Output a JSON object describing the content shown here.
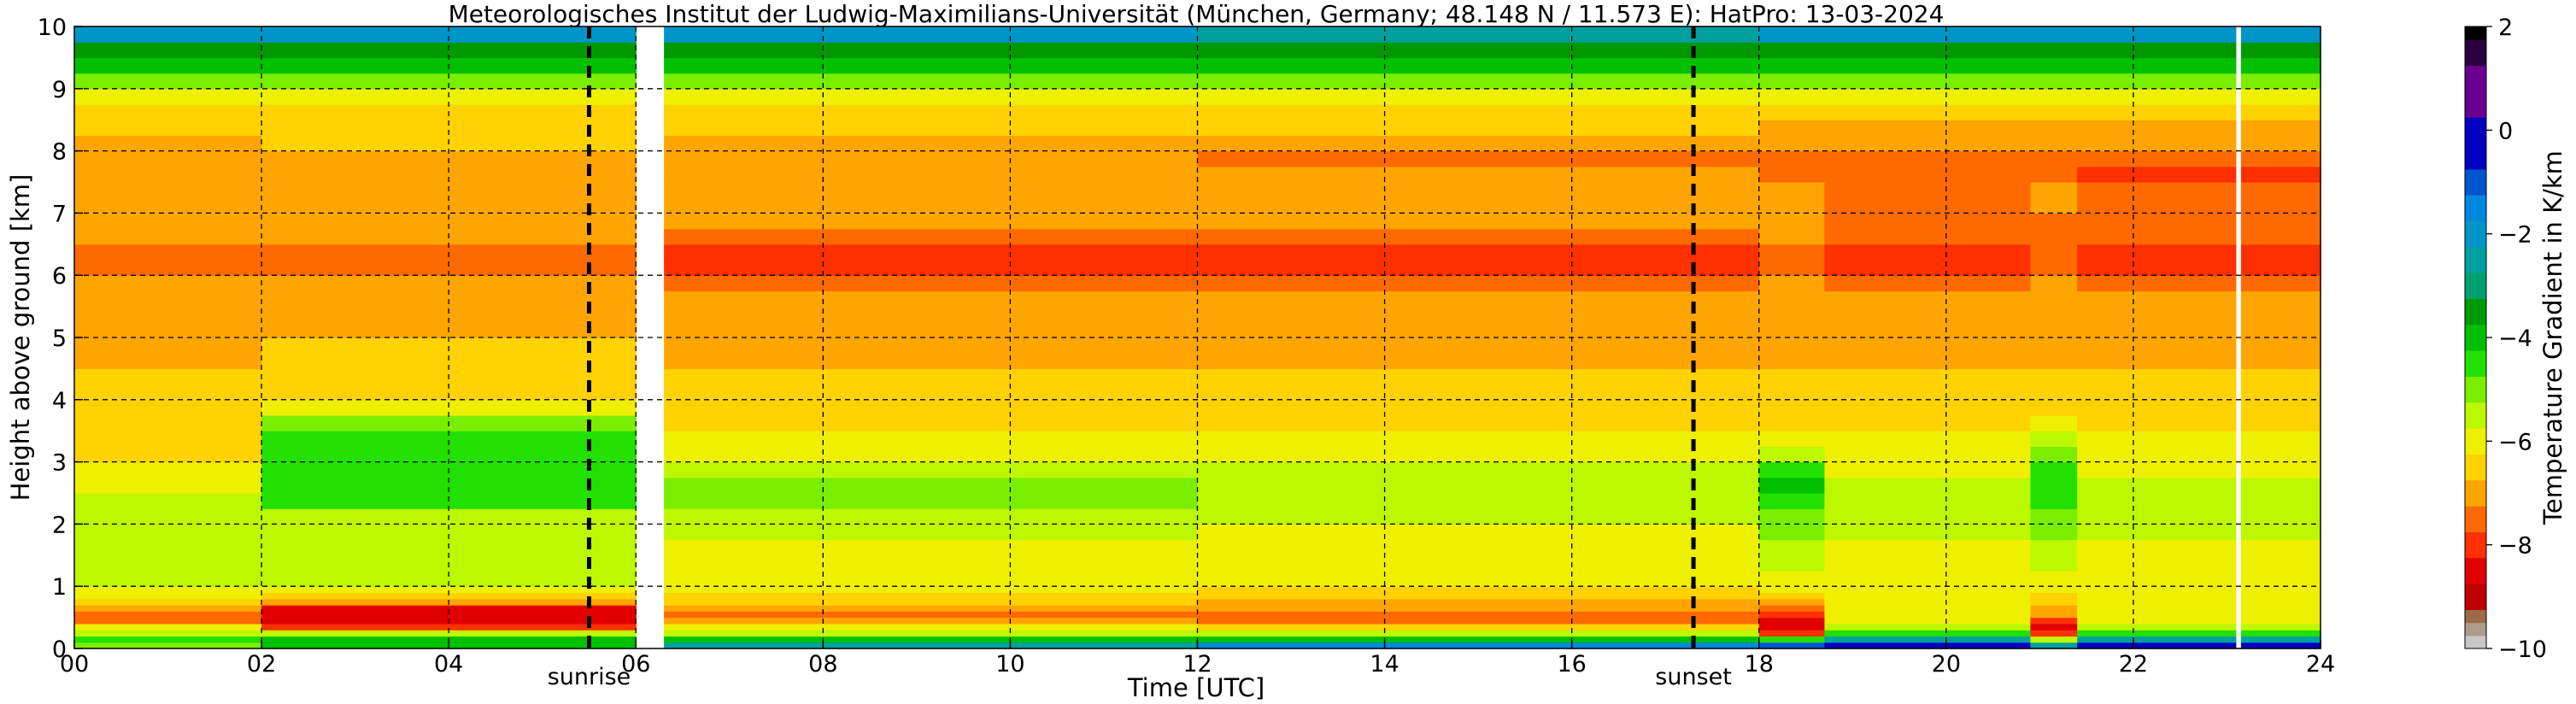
{
  "chart_data": {
    "type": "heatmap",
    "title": "Meteorologisches Institut der Ludwig-Maximilians-Universität (München, Germany; 48.148 N / 11.573 E):    HatPro: 13-03-2024",
    "xlabel": "Time [UTC]",
    "ylabel": "Height above ground [km]",
    "colorbar_label": "Temperature Gradient in K/km",
    "xlim": [
      0,
      24
    ],
    "ylim": [
      0,
      10
    ],
    "x_ticks": [
      "00",
      "02",
      "04",
      "06",
      "08",
      "10",
      "12",
      "14",
      "16",
      "18",
      "20",
      "22",
      "24"
    ],
    "y_ticks": [
      "0",
      "1",
      "2",
      "3",
      "4",
      "5",
      "6",
      "7",
      "8",
      "9",
      "10"
    ],
    "colorbar_ticks": [
      "2",
      "0",
      "−2",
      "−4",
      "−6",
      "−8",
      "−10"
    ],
    "colorbar_range": [
      -10,
      2
    ],
    "grid": true,
    "grid_style": "dashed",
    "annotations": [
      {
        "label": "sunrise",
        "x": 5.5
      },
      {
        "label": "sunset",
        "x": 17.3
      }
    ],
    "missing_data": [
      [
        6.05,
        6.25
      ],
      [
        23.1,
        23.15
      ]
    ],
    "colormap": [
      {
        "from": -10.0,
        "to": -9.75,
        "color": "#c7c7c7"
      },
      {
        "from": -9.75,
        "to": -9.5,
        "color": "#b09a8a"
      },
      {
        "from": -9.5,
        "to": -9.25,
        "color": "#9a6a4a"
      },
      {
        "from": -9.25,
        "to": -8.75,
        "color": "#c00000"
      },
      {
        "from": -8.75,
        "to": -8.25,
        "color": "#e00000"
      },
      {
        "from": -8.25,
        "to": -7.75,
        "color": "#ff3000"
      },
      {
        "from": -7.75,
        "to": -7.25,
        "color": "#ff6a00"
      },
      {
        "from": -7.25,
        "to": -6.75,
        "color": "#ffa500"
      },
      {
        "from": -6.75,
        "to": -6.25,
        "color": "#ffd200"
      },
      {
        "from": -6.25,
        "to": -5.75,
        "color": "#eff000"
      },
      {
        "from": -5.75,
        "to": -5.25,
        "color": "#bdf700"
      },
      {
        "from": -5.25,
        "to": -4.75,
        "color": "#7aee00"
      },
      {
        "from": -4.75,
        "to": -4.25,
        "color": "#22e000"
      },
      {
        "from": -4.25,
        "to": -3.75,
        "color": "#00c000"
      },
      {
        "from": -3.75,
        "to": -3.25,
        "color": "#009a00"
      },
      {
        "from": -3.25,
        "to": -2.75,
        "color": "#00a070"
      },
      {
        "from": -2.75,
        "to": -2.25,
        "color": "#00a0a0"
      },
      {
        "from": -2.25,
        "to": -1.75,
        "color": "#0095c8"
      },
      {
        "from": -1.75,
        "to": -1.25,
        "color": "#0088e0"
      },
      {
        "from": -1.25,
        "to": -0.75,
        "color": "#0055d0"
      },
      {
        "from": -0.75,
        "to": 0.25,
        "color": "#0000c0"
      },
      {
        "from": 0.25,
        "to": 1.25,
        "color": "#6a0090"
      },
      {
        "from": 1.25,
        "to": 1.75,
        "color": "#2a0040"
      },
      {
        "from": 1.75,
        "to": 2.0,
        "color": "#000000"
      }
    ],
    "profile_height_km": [
      0.0,
      0.1,
      0.2,
      0.3,
      0.4,
      0.5,
      0.6,
      0.7,
      0.8,
      0.9,
      1.0,
      1.25,
      1.5,
      1.75,
      2.0,
      2.25,
      2.5,
      2.75,
      3.0,
      3.25,
      3.5,
      3.75,
      4.0,
      4.5,
      5.0,
      5.5,
      5.75,
      6.0,
      6.25,
      6.5,
      6.75,
      7.0,
      7.5,
      7.75,
      8.0,
      8.25,
      8.5,
      8.75,
      9.0,
      9.25,
      9.5,
      9.75,
      10.0
    ],
    "segments": [
      {
        "t0": 0.0,
        "t1": 2.0,
        "profile": [
          -5.0,
          -4.5,
          -5.5,
          -6.2,
          -7.5,
          -7.5,
          -6.8,
          -6.5,
          -6.2,
          -6.0,
          -5.7,
          -5.6,
          -5.4,
          -5.4,
          -5.3,
          -5.7,
          -6.0,
          -6.1,
          -6.3,
          -6.4,
          -6.5,
          -6.6,
          -6.7,
          -6.8,
          -6.9,
          -7.0,
          -7.1,
          -7.6,
          -7.7,
          -7.2,
          -7.1,
          -7.0,
          -7.2,
          -7.1,
          -6.8,
          -6.6,
          -6.5,
          -5.8,
          -5.0,
          -4.0,
          -3.6,
          -2.2,
          -1.8
        ]
      },
      {
        "t0": 2.0,
        "t1": 6.0,
        "profile": [
          -4.0,
          -4.2,
          -5.5,
          -8.2,
          -8.6,
          -8.7,
          -8.5,
          -7.2,
          -6.4,
          -6.0,
          -5.7,
          -5.6,
          -5.5,
          -5.3,
          -5.3,
          -4.6,
          -4.6,
          -4.5,
          -4.6,
          -4.7,
          -5.2,
          -6.0,
          -6.4,
          -6.7,
          -6.8,
          -6.9,
          -7.0,
          -7.4,
          -7.4,
          -7.1,
          -7.0,
          -6.9,
          -7.0,
          -6.9,
          -6.7,
          -6.6,
          -6.4,
          -5.8,
          -5.0,
          -4.0,
          -3.5,
          -2.2,
          -1.8
        ]
      },
      {
        "t0": 6.3,
        "t1": 12.0,
        "profile": [
          -2.5,
          -4.0,
          -5.7,
          -6.2,
          -7.0,
          -7.3,
          -7.0,
          -6.7,
          -6.5,
          -6.2,
          -6.0,
          -5.9,
          -5.8,
          -5.5,
          -5.4,
          -5.0,
          -5.0,
          -5.4,
          -5.8,
          -6.2,
          -6.4,
          -6.6,
          -6.7,
          -6.8,
          -6.9,
          -7.0,
          -7.4,
          -7.8,
          -7.8,
          -7.3,
          -7.1,
          -7.0,
          -7.1,
          -7.1,
          -6.9,
          -6.6,
          -6.4,
          -5.8,
          -5.0,
          -4.0,
          -3.5,
          -2.2,
          -1.8
        ]
      },
      {
        "t0": 12.0,
        "t1": 18.0,
        "profile": [
          -1.5,
          -4.0,
          -5.6,
          -6.4,
          -7.5,
          -7.4,
          -7.2,
          -6.8,
          -6.5,
          -6.3,
          -6.1,
          -6.0,
          -5.9,
          -5.8,
          -5.7,
          -5.6,
          -5.6,
          -5.7,
          -6.0,
          -6.2,
          -6.4,
          -6.6,
          -6.7,
          -6.8,
          -6.9,
          -7.0,
          -7.4,
          -7.8,
          -7.8,
          -7.3,
          -7.2,
          -7.1,
          -7.2,
          -7.3,
          -7.0,
          -6.7,
          -6.5,
          -5.9,
          -5.0,
          -4.0,
          -3.7,
          -2.3,
          -1.8
        ]
      },
      {
        "t0": 18.0,
        "t1": 18.7,
        "profile": [
          -1.0,
          -4.5,
          -8.0,
          -8.5,
          -8.6,
          -8.2,
          -7.5,
          -6.8,
          -6.3,
          -6.0,
          -5.8,
          -5.6,
          -5.5,
          -5.0,
          -4.8,
          -4.4,
          -4.2,
          -4.4,
          -5.5,
          -6.0,
          -6.4,
          -6.6,
          -6.7,
          -6.8,
          -6.9,
          -7.0,
          -7.1,
          -7.3,
          -7.3,
          -7.2,
          -7.1,
          -7.1,
          -7.3,
          -7.3,
          -7.0,
          -6.8,
          -6.5,
          -5.9,
          -5.0,
          -4.0,
          -3.6,
          -2.2,
          -1.8
        ]
      },
      {
        "t0": 18.7,
        "t1": 20.9,
        "profile": [
          -0.5,
          -2.5,
          -4.5,
          -5.6,
          -6.0,
          -6.2,
          -6.2,
          -6.2,
          -6.2,
          -6.1,
          -6.0,
          -5.9,
          -5.8,
          -5.4,
          -5.5,
          -5.6,
          -5.6,
          -5.8,
          -6.0,
          -6.2,
          -6.4,
          -6.6,
          -6.7,
          -6.8,
          -6.9,
          -7.0,
          -7.4,
          -7.8,
          -7.8,
          -7.5,
          -7.5,
          -7.5,
          -7.7,
          -7.6,
          -7.2,
          -6.8,
          -6.5,
          -5.9,
          -5.0,
          -4.0,
          -3.6,
          -2.2,
          -1.8
        ]
      },
      {
        "t0": 20.9,
        "t1": 21.4,
        "profile": [
          -2.5,
          -5.5,
          -8.2,
          -8.6,
          -8.2,
          -7.2,
          -6.8,
          -6.5,
          -6.3,
          -6.0,
          -5.8,
          -5.6,
          -5.4,
          -5.2,
          -5.0,
          -4.6,
          -4.4,
          -4.6,
          -4.8,
          -5.6,
          -6.2,
          -6.6,
          -6.7,
          -6.8,
          -6.9,
          -7.0,
          -7.2,
          -7.5,
          -7.5,
          -7.4,
          -7.3,
          -7.2,
          -7.4,
          -7.4,
          -7.0,
          -6.8,
          -6.5,
          -5.9,
          -5.0,
          -4.0,
          -3.6,
          -2.2,
          -1.8
        ]
      },
      {
        "t0": 21.4,
        "t1": 24.0,
        "profile": [
          -0.5,
          -2.5,
          -4.5,
          -5.6,
          -6.0,
          -6.2,
          -6.2,
          -6.2,
          -6.2,
          -6.1,
          -6.0,
          -5.9,
          -5.8,
          -5.5,
          -5.5,
          -5.6,
          -5.6,
          -5.8,
          -6.0,
          -6.2,
          -6.4,
          -6.6,
          -6.7,
          -6.8,
          -6.9,
          -7.0,
          -7.4,
          -7.8,
          -7.8,
          -7.6,
          -7.6,
          -7.6,
          -7.8,
          -7.7,
          -7.2,
          -6.8,
          -6.5,
          -5.9,
          -5.0,
          -4.0,
          -3.6,
          -2.2,
          -1.8
        ]
      }
    ]
  }
}
